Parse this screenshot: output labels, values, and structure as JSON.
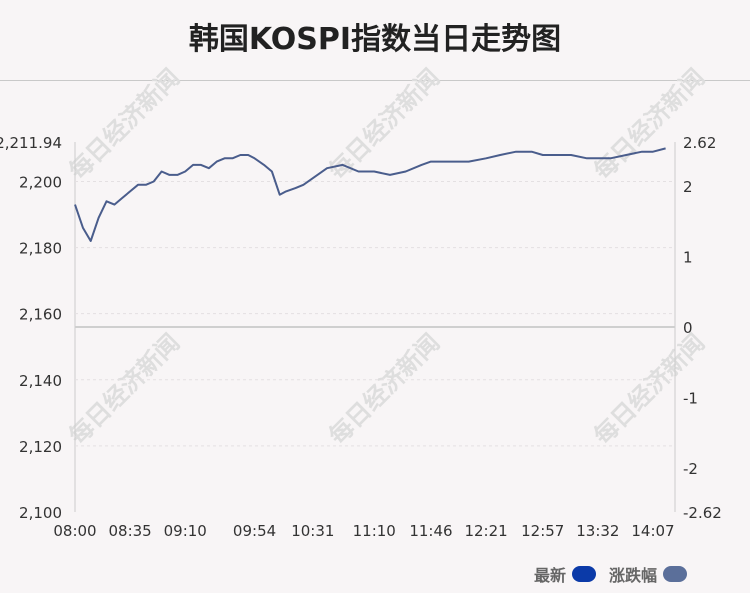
{
  "title": "韩国KOSPI指数当日走势图",
  "watermark": "每日经济新闻",
  "legend": {
    "items": [
      {
        "label": "最新",
        "color": "#0b3aa8"
      },
      {
        "label": "涨跌幅",
        "color": "#5b6f9a"
      }
    ]
  },
  "colors": {
    "line": "#4a5d8c",
    "baseline": "#cfcfcf",
    "grid": "#e4e0e2",
    "text": "#333333"
  },
  "chart_data": {
    "type": "line",
    "title": "韩国KOSPI指数当日走势图",
    "x_ticks": [
      "08:00",
      "08:35",
      "09:10",
      "09:54",
      "10:31",
      "11:10",
      "11:46",
      "12:21",
      "12:57",
      "13:32",
      "14:07"
    ],
    "y_left": {
      "ticks": [
        "2,211.94",
        "2,200",
        "2,180",
        "2,160",
        "2,140",
        "2,120",
        "2,100"
      ],
      "range": [
        2100,
        2211.94
      ]
    },
    "y_right": {
      "ticks": [
        "2.62",
        "2",
        "1",
        "0",
        "-1",
        "-2",
        "-2.62"
      ],
      "range": [
        -2.62,
        2.62
      ]
    },
    "prev_close": 2155.5,
    "series": [
      {
        "x": [
          "08:00",
          "08:05",
          "08:10",
          "08:15",
          "08:20",
          "08:25",
          "08:30",
          "08:35",
          "08:40",
          "08:45",
          "08:50",
          "08:55",
          "09:00",
          "09:05",
          "09:10",
          "09:15",
          "09:20",
          "09:25",
          "09:30",
          "09:35",
          "09:40",
          "09:45",
          "09:50",
          "09:54",
          "10:00",
          "10:05",
          "10:10",
          "10:14",
          "10:20",
          "10:25",
          "10:31",
          "10:40",
          "10:50",
          "11:00",
          "11:10",
          "11:20",
          "11:30",
          "11:40",
          "11:46",
          "12:00",
          "12:10",
          "12:21",
          "12:30",
          "12:40",
          "12:50",
          "12:57",
          "13:05",
          "13:15",
          "13:25",
          "13:32",
          "13:40",
          "13:50",
          "14:00",
          "14:07",
          "14:15"
        ],
        "values": [
          2193,
          2186,
          2182,
          2189,
          2194,
          2193,
          2195,
          2197,
          2199,
          2199,
          2200,
          2203,
          2202,
          2202,
          2203,
          2205,
          2205,
          2204,
          2206,
          2207,
          2207,
          2208,
          2208,
          2207,
          2205,
          2203,
          2196,
          2197,
          2198,
          2199,
          2201,
          2204,
          2205,
          2203,
          2203,
          2202,
          2203,
          2205,
          2206,
          2206,
          2206,
          2207,
          2208,
          2209,
          2209,
          2208,
          2208,
          2208,
          2207,
          2207,
          2207,
          2208,
          2209,
          2209,
          2210
        ]
      }
    ],
    "grid": "dashed horizontal",
    "legend_position": "bottom-right"
  }
}
